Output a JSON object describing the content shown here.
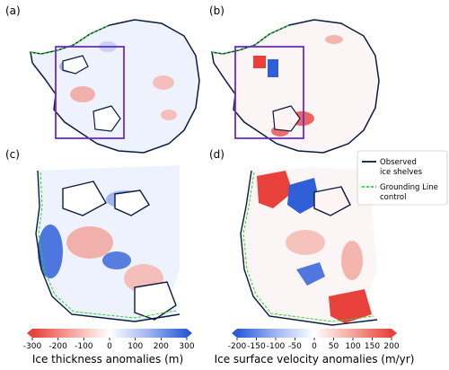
{
  "panels": {
    "a": {
      "label": "(a)"
    },
    "b": {
      "label": "(b)"
    },
    "c": {
      "label": "(c)"
    },
    "d": {
      "label": "(d)"
    }
  },
  "legend": {
    "observed": "Observed",
    "observed2": "ice shelves",
    "grounding": "Grounding Line",
    "grounding2": "control"
  },
  "colorbars": {
    "thickness": {
      "ticks": [
        "-300",
        "-200",
        "-100",
        "0",
        "100",
        "200",
        "300"
      ],
      "title": "Ice thickness anomalies (m)"
    },
    "velocity": {
      "ticks": [
        "-200",
        "-150",
        "-100",
        "-50",
        "0",
        "50",
        "100",
        "150",
        "200"
      ],
      "title": "Ice surface velocity anomalies (m/yr)"
    }
  },
  "colors": {
    "red": "#e8403a",
    "blue": "#3060d8",
    "box": "#6a2bd0",
    "grounding": "#22dd22"
  }
}
